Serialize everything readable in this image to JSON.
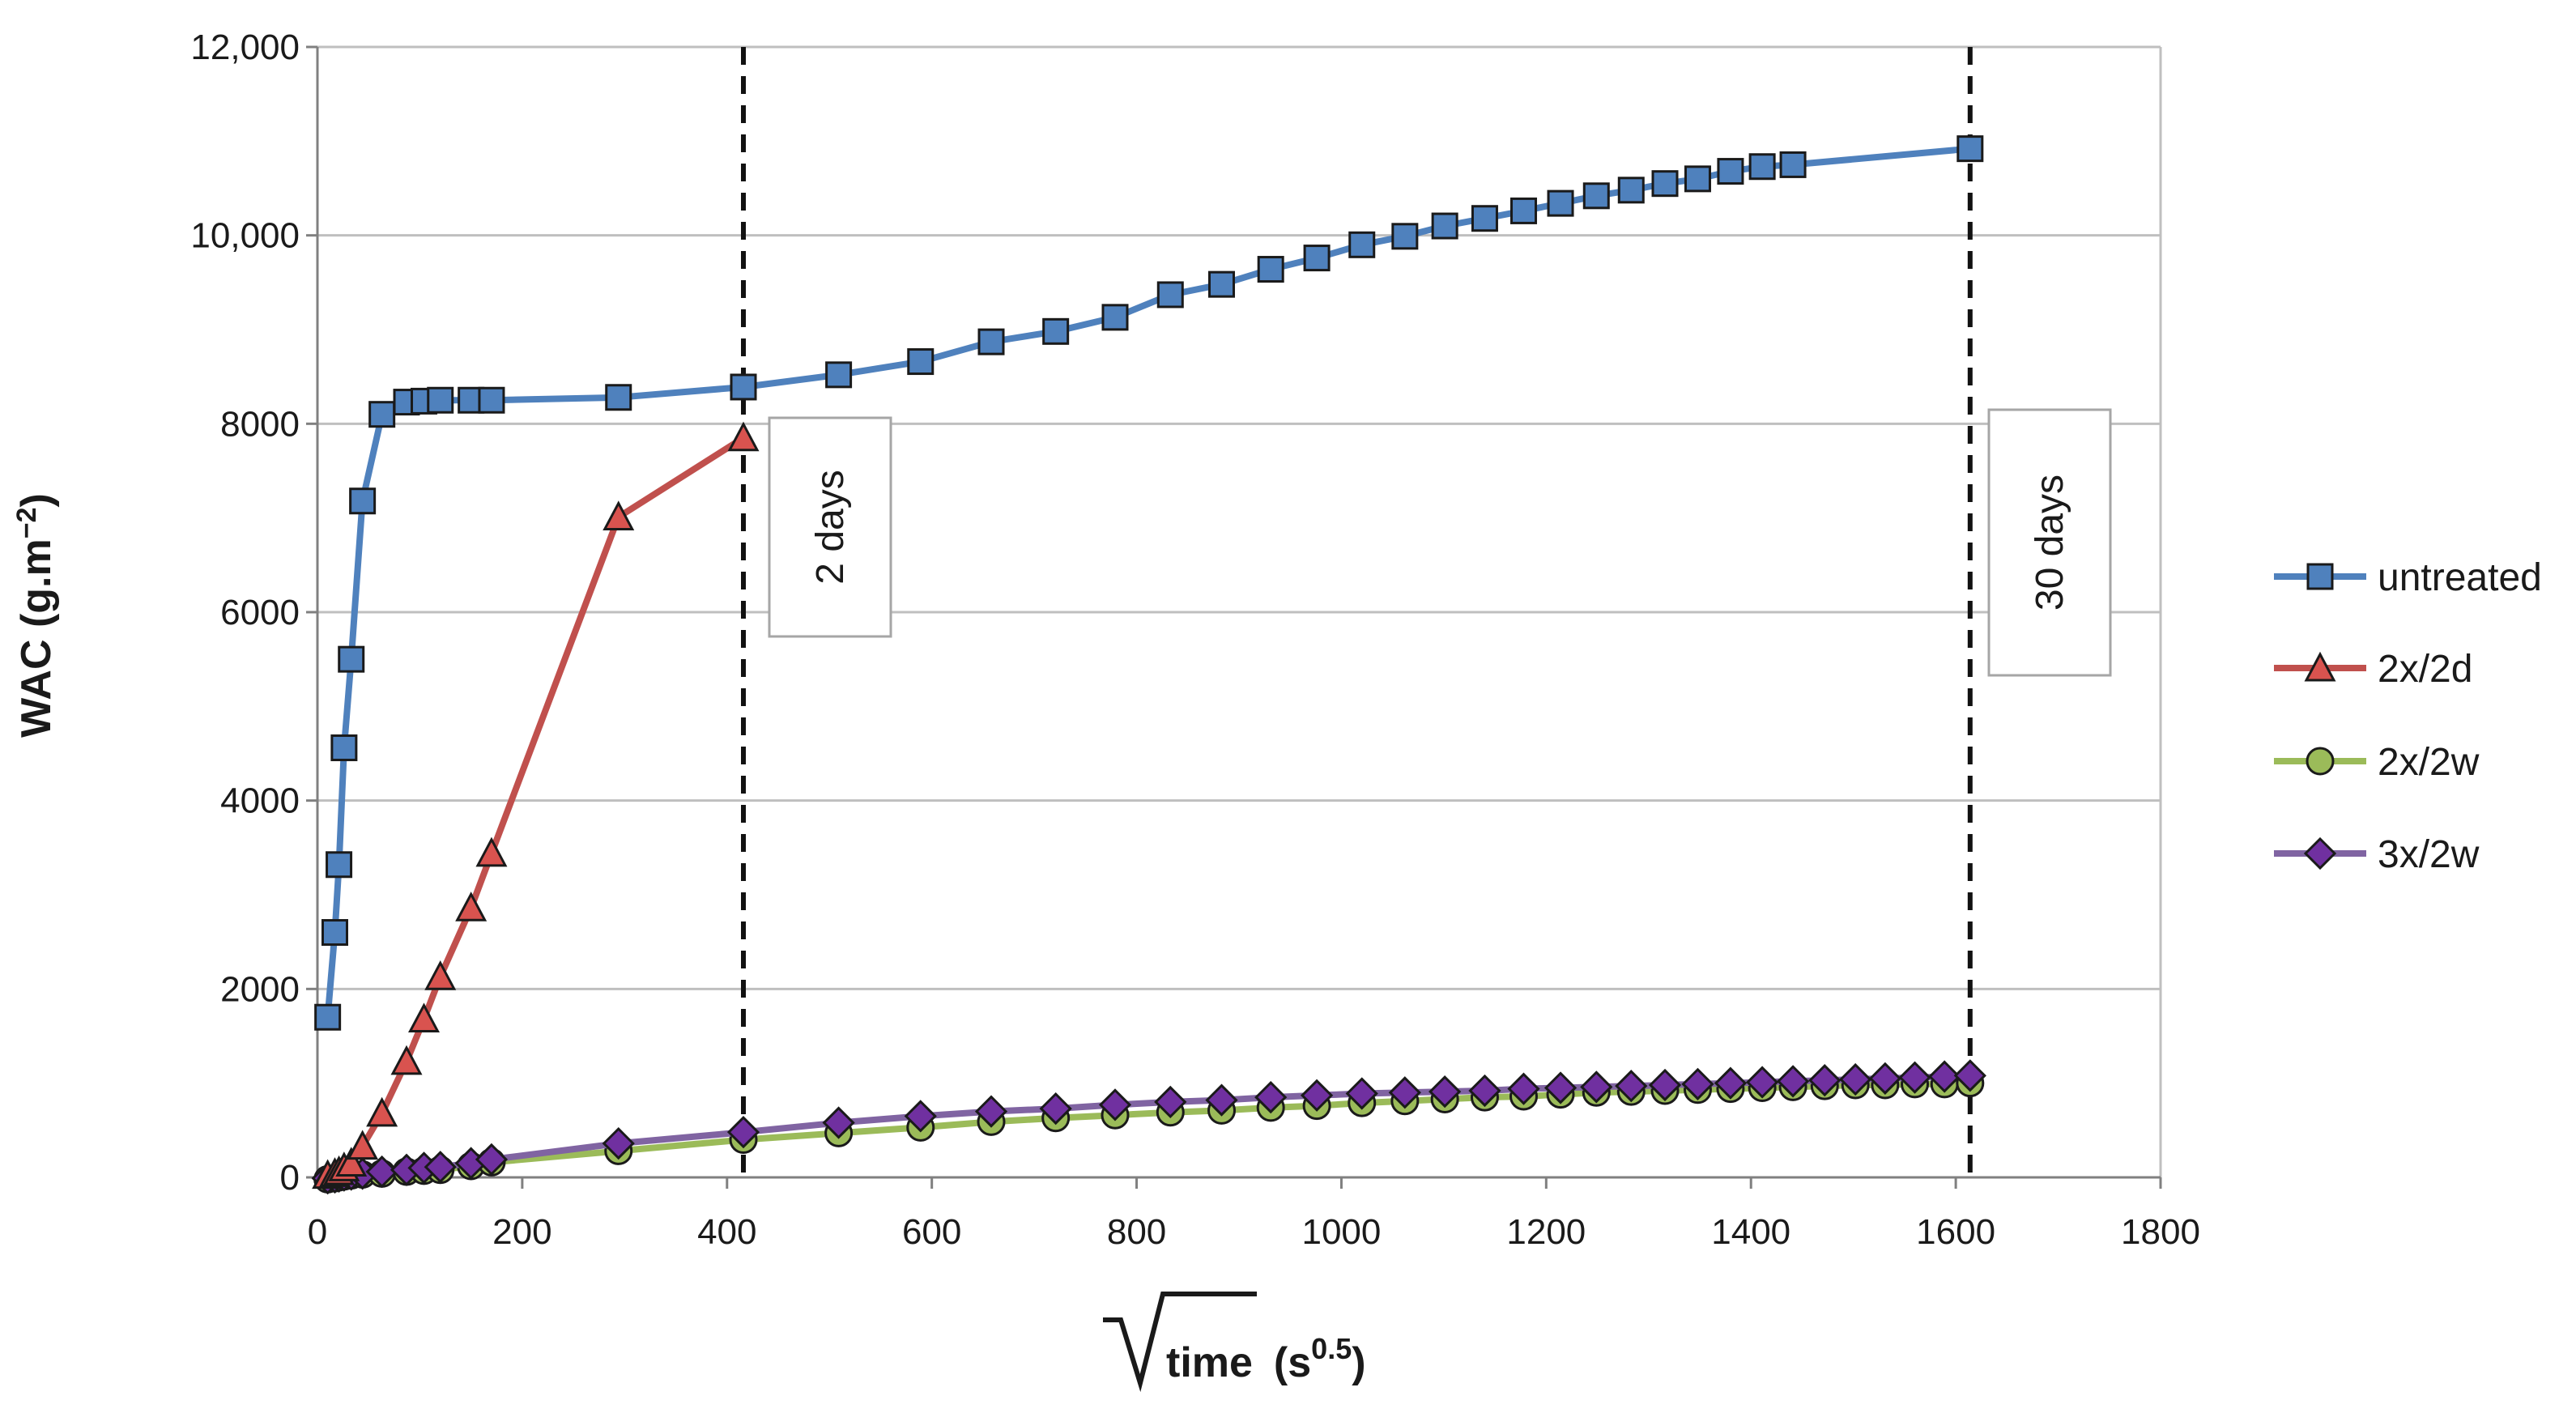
{
  "chart_data": {
    "type": "line",
    "title": "",
    "xlabel": "time",
    "xlabel_unit": "(s",
    "xlabel_unit_exp": "0.5",
    "xlabel_unit_close": ")",
    "ylabel": "WAC (g.m",
    "ylabel_exp": "−2",
    "ylabel_close": ")",
    "xlim": [
      0,
      1800
    ],
    "ylim": [
      0,
      12000
    ],
    "x_ticks": [
      0,
      200,
      400,
      600,
      800,
      1000,
      1200,
      1400,
      1600,
      1800
    ],
    "x_tick_labels": [
      "0",
      "200",
      "400",
      "600",
      "800",
      "1000",
      "1200",
      "1400",
      "1600",
      "1800"
    ],
    "y_ticks": [
      0,
      2000,
      4000,
      6000,
      8000,
      10000,
      12000
    ],
    "y_tick_labels": [
      "0",
      "2000",
      "4000",
      "6000",
      "8000",
      "10,000",
      "12,000"
    ],
    "grid": "horizontal",
    "legend_position": "right",
    "series": [
      {
        "name": "untreated",
        "color": "#4f81bd",
        "marker": "square",
        "marker_fill": "#4f81bd",
        "x": [
          10,
          17,
          21,
          26,
          33,
          44,
          63,
          87,
          104,
          120,
          150,
          170,
          294,
          416,
          509,
          589,
          658,
          721,
          779,
          833,
          883,
          931,
          976,
          1020,
          1062,
          1101,
          1140,
          1178,
          1214,
          1249,
          1283,
          1316,
          1348,
          1380,
          1411,
          1441,
          1614
        ],
        "y": [
          1700,
          2600,
          3320,
          4560,
          5500,
          7180,
          8100,
          8230,
          8240,
          8250,
          8250,
          8250,
          8280,
          8390,
          8520,
          8660,
          8870,
          8980,
          9130,
          9370,
          9480,
          9640,
          9760,
          9900,
          9990,
          10100,
          10180,
          10260,
          10340,
          10420,
          10480,
          10550,
          10600,
          10680,
          10730,
          10750,
          10920
        ]
      },
      {
        "name": "2x/2d",
        "color": "#c0504d",
        "marker": "triangle",
        "marker_fill": "#d9534f",
        "x": [
          10,
          17,
          21,
          26,
          33,
          44,
          63,
          87,
          104,
          120,
          150,
          170,
          294,
          416
        ],
        "y": [
          20,
          40,
          60,
          100,
          150,
          330,
          680,
          1230,
          1680,
          2130,
          2860,
          3440,
          7010,
          7850
        ]
      },
      {
        "name": "2x/2w",
        "color": "#9bbb59",
        "marker": "circle",
        "marker_fill": "#9bbb59",
        "x": [
          10,
          17,
          21,
          26,
          33,
          44,
          63,
          87,
          104,
          120,
          150,
          170,
          294,
          416,
          509,
          589,
          658,
          721,
          779,
          833,
          883,
          931,
          976,
          1020,
          1062,
          1101,
          1140,
          1178,
          1214,
          1249,
          1283,
          1316,
          1348,
          1380,
          1411,
          1441,
          1472,
          1502,
          1531,
          1560,
          1589,
          1614
        ],
        "y": [
          -20,
          -10,
          0,
          10,
          20,
          30,
          40,
          60,
          70,
          80,
          120,
          160,
          280,
          400,
          470,
          530,
          590,
          630,
          660,
          690,
          710,
          740,
          760,
          790,
          810,
          830,
          850,
          860,
          880,
          900,
          910,
          920,
          930,
          940,
          950,
          960,
          970,
          980,
          980,
          990,
          990,
          1000
        ]
      },
      {
        "name": "3x/2w",
        "color": "#8064a2",
        "marker": "diamond",
        "marker_fill": "#7030a0",
        "x": [
          10,
          17,
          21,
          26,
          33,
          44,
          63,
          87,
          104,
          120,
          150,
          170,
          294,
          416,
          509,
          589,
          658,
          721,
          779,
          833,
          883,
          931,
          976,
          1020,
          1062,
          1101,
          1140,
          1178,
          1214,
          1249,
          1283,
          1316,
          1348,
          1380,
          1411,
          1441,
          1472,
          1502,
          1531,
          1560,
          1589,
          1614
        ],
        "y": [
          -10,
          0,
          10,
          20,
          30,
          40,
          60,
          80,
          100,
          110,
          150,
          190,
          360,
          480,
          580,
          650,
          700,
          730,
          770,
          800,
          820,
          850,
          870,
          890,
          900,
          910,
          920,
          940,
          950,
          960,
          970,
          980,
          990,
          1000,
          1010,
          1020,
          1030,
          1040,
          1050,
          1060,
          1070,
          1080
        ]
      }
    ],
    "vertical_lines": [
      {
        "x": 416,
        "label": "2 days"
      },
      {
        "x": 1614,
        "label": "30 days"
      }
    ]
  }
}
